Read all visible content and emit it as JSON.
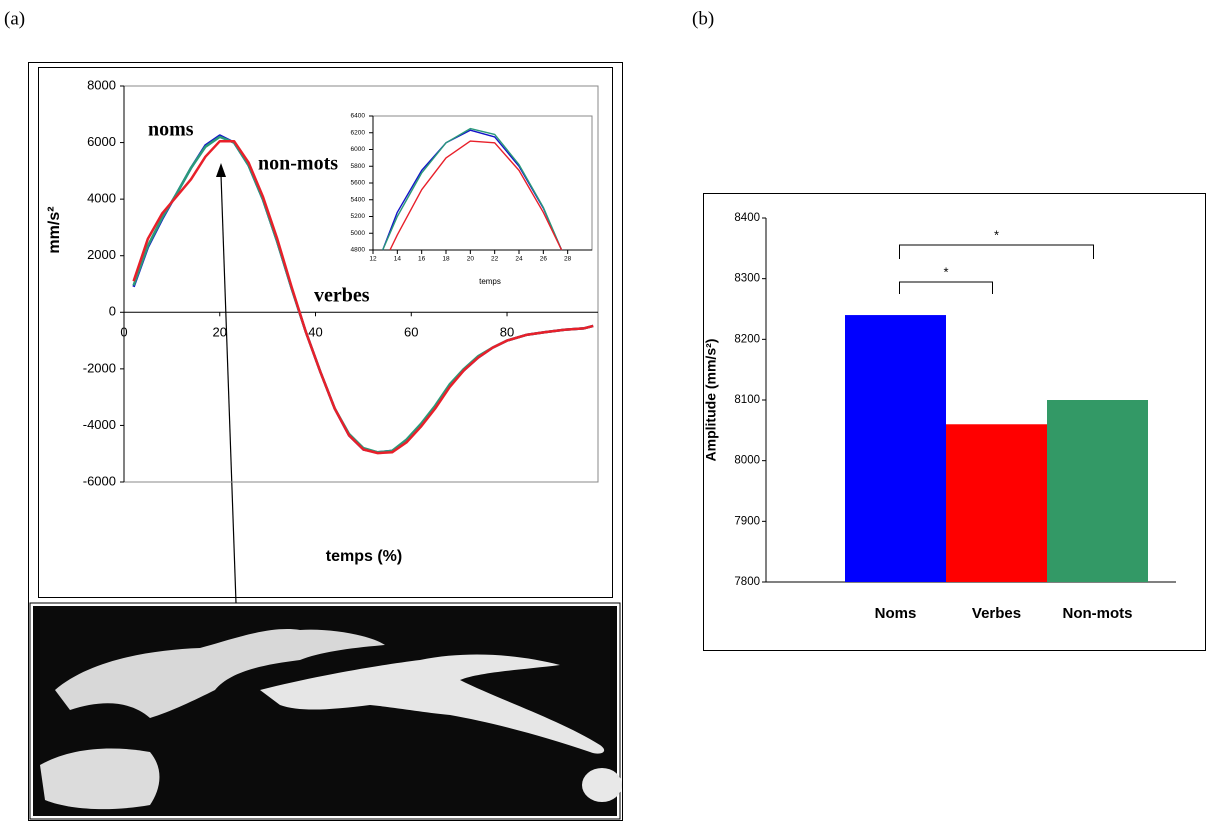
{
  "panels": [
    "(a)",
    "(b)"
  ],
  "chart_data": [
    {
      "type": "line",
      "xlabel": "temps (%)",
      "ylabel": "mm/s²",
      "x": [
        2,
        5,
        8,
        11,
        14,
        17,
        20,
        23,
        26,
        29,
        32,
        35,
        38,
        41,
        44,
        47,
        50,
        53,
        56,
        59,
        62,
        65,
        68,
        71,
        74,
        77,
        80,
        84,
        88,
        92,
        96,
        98
      ],
      "series": [
        {
          "name": "noms",
          "color": "#1414c8",
          "label_color": "#0000ff",
          "values": [
            900,
            2300,
            3300,
            4200,
            5100,
            5900,
            6250,
            6000,
            5200,
            4000,
            2500,
            850,
            -700,
            -2100,
            -3400,
            -4350,
            -4850,
            -4950,
            -4900,
            -4550,
            -4000,
            -3350,
            -2600,
            -2050,
            -1600,
            -1250,
            -1000,
            -800,
            -700,
            -620,
            -570,
            -480
          ]
        },
        {
          "name": "non-mots",
          "color": "#2a9a7a",
          "label_color": "#000000",
          "values": [
            950,
            2350,
            3350,
            4200,
            5100,
            5850,
            6200,
            6000,
            5200,
            4000,
            2500,
            850,
            -700,
            -2100,
            -3400,
            -4300,
            -4800,
            -4950,
            -4900,
            -4500,
            -3950,
            -3300,
            -2550,
            -2000,
            -1550,
            -1250,
            -1000,
            -800,
            -700,
            -620,
            -570,
            -480
          ]
        },
        {
          "name": "verbes",
          "color": "#e8202a",
          "label_color": "#ff0000",
          "values": [
            1100,
            2600,
            3500,
            4100,
            4700,
            5500,
            6050,
            6050,
            5300,
            4100,
            2600,
            900,
            -700,
            -2100,
            -3400,
            -4350,
            -4850,
            -4980,
            -4950,
            -4600,
            -4050,
            -3400,
            -2650,
            -2050,
            -1600,
            -1250,
            -1000,
            -800,
            -700,
            -620,
            -570,
            -480
          ]
        }
      ],
      "xlim": [
        0,
        99
      ],
      "xticks": [
        0,
        20,
        40,
        60,
        80
      ],
      "ylim": [
        -6000,
        8000
      ],
      "yticks": [
        -6000,
        -4000,
        -2000,
        0,
        2000,
        4000,
        6000,
        8000
      ]
    },
    {
      "type": "line",
      "xlabel": "temps",
      "series": [
        {
          "color": "#1414c8",
          "x": [
            12.8,
            14,
            16,
            18,
            20,
            22,
            24,
            26,
            27.5
          ],
          "values": [
            4800,
            5250,
            5750,
            6080,
            6230,
            6150,
            5800,
            5300,
            4800
          ]
        },
        {
          "color": "#2a9a7a",
          "x": [
            12.8,
            14,
            16,
            18,
            20,
            22,
            24,
            26,
            27.5
          ],
          "values": [
            4800,
            5200,
            5720,
            6080,
            6250,
            6180,
            5820,
            5310,
            4800
          ]
        },
        {
          "color": "#e8202a",
          "x": [
            13.4,
            14,
            16,
            18,
            20,
            22,
            24,
            26,
            27.5
          ],
          "values": [
            4800,
            4980,
            5520,
            5900,
            6100,
            6080,
            5750,
            5250,
            4800
          ]
        }
      ],
      "xlim": [
        12,
        30
      ],
      "xticks": [
        12,
        14,
        16,
        18,
        20,
        22,
        24,
        26,
        28
      ],
      "ylim": [
        4800,
        6400
      ],
      "yticks": [
        4800,
        5000,
        5200,
        5400,
        5600,
        5800,
        6000,
        6200,
        6400
      ]
    },
    {
      "type": "bar",
      "ylabel": "Amplitude (mm/s²)",
      "categories": [
        "Noms",
        "Verbes",
        "Non-mots"
      ],
      "values": [
        8240,
        8060,
        8100
      ],
      "colors": [
        "#0000ff",
        "#ff0000",
        "#339966"
      ],
      "ylim": [
        7800,
        8400
      ],
      "yticks": [
        7800,
        7900,
        8000,
        8100,
        8200,
        8300,
        8400
      ],
      "annotations": [
        "*",
        "*"
      ]
    }
  ]
}
